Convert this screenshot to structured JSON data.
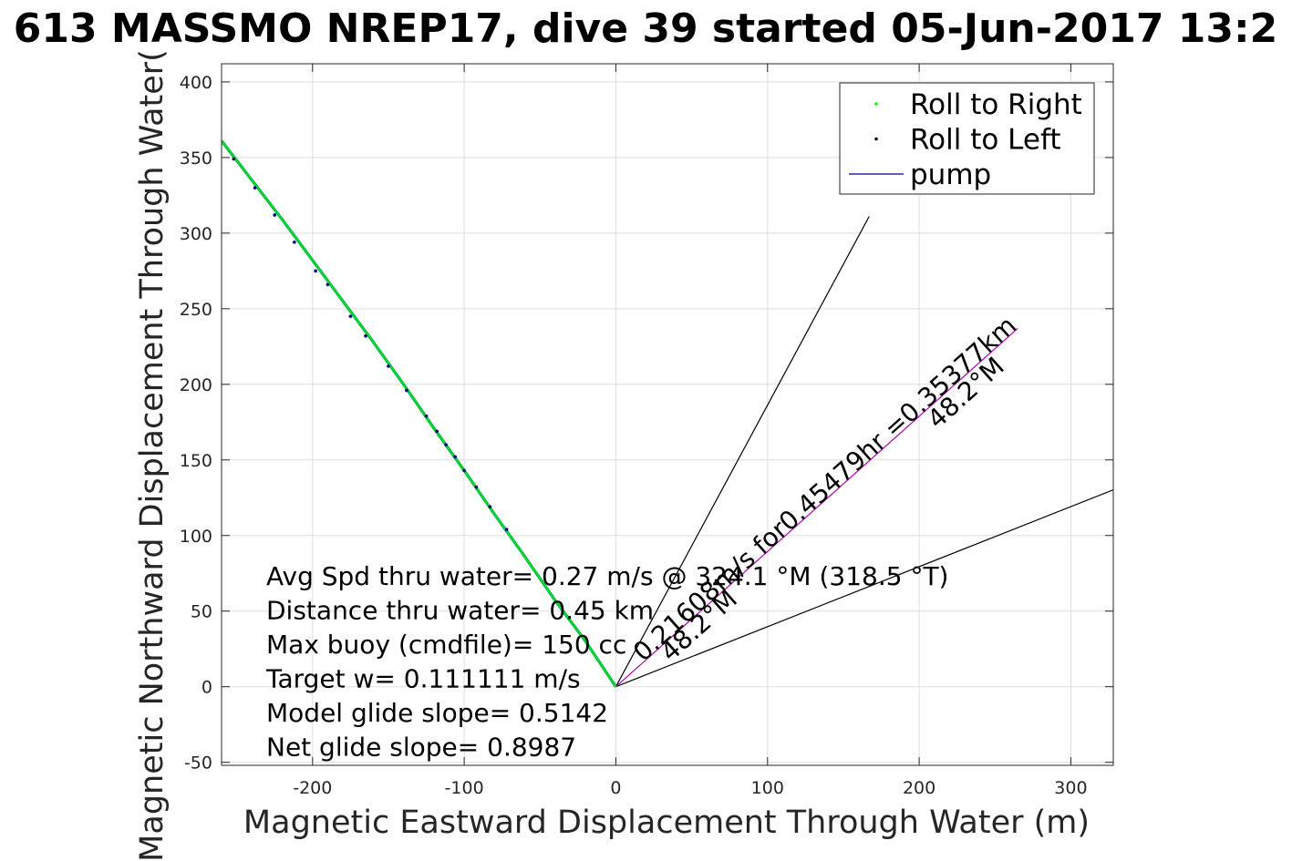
{
  "chart_data": {
    "type": "scatter",
    "title": "613 MASSMO NREP17, dive 39 started 05-Jun-2017 13:2",
    "xlabel": "Magnetic Eastward Displacement Through Water (m)",
    "ylabel": "Magnetic Northward Displacement Through Water(",
    "xlim": [
      -260,
      328
    ],
    "ylim": [
      -52,
      412
    ],
    "xticks": [
      -200,
      -100,
      0,
      100,
      200,
      300
    ],
    "yticks": [
      -50,
      0,
      50,
      100,
      150,
      200,
      250,
      300,
      350,
      400
    ],
    "grid": true,
    "legend": {
      "placement": "top-right",
      "entries": [
        {
          "label": "Roll to Right",
          "color": "#00ff00",
          "marker": "dot"
        },
        {
          "label": "Roll to Left",
          "color": "#000000",
          "marker": "dot"
        },
        {
          "label": "pump",
          "color": "#000080",
          "marker": "line"
        }
      ]
    },
    "track": [
      [
        -260,
        361
      ],
      [
        -240,
        335
      ],
      [
        -220,
        309
      ],
      [
        -200,
        282
      ],
      [
        -180,
        255
      ],
      [
        -160,
        228
      ],
      [
        -140,
        200
      ],
      [
        -120,
        171
      ],
      [
        -100,
        143
      ],
      [
        -80,
        114
      ],
      [
        -60,
        86
      ],
      [
        -40,
        57
      ],
      [
        -20,
        30
      ],
      [
        0,
        0
      ]
    ],
    "left_roll_points": [
      [
        -252,
        349
      ],
      [
        -238,
        330
      ],
      [
        -225,
        312
      ],
      [
        -212,
        294
      ],
      [
        -198,
        275
      ],
      [
        -190,
        266
      ],
      [
        -175,
        245
      ],
      [
        -165,
        232
      ],
      [
        -150,
        212
      ],
      [
        -138,
        196
      ],
      [
        -125,
        179
      ],
      [
        -118,
        169
      ],
      [
        -112,
        160
      ],
      [
        -106,
        152
      ],
      [
        -100,
        143
      ],
      [
        -92,
        132
      ],
      [
        -83,
        119
      ],
      [
        -72,
        104
      ]
    ],
    "glide_lines": [
      {
        "from": [
          0,
          0
        ],
        "to": [
          167,
          311
        ],
        "color": "#000000"
      },
      {
        "from": [
          0,
          0
        ],
        "to": [
          330,
          131
        ],
        "color": "#000000"
      },
      {
        "from": [
          0,
          0
        ],
        "to": [
          265,
          237
        ],
        "color": "#b000b0"
      }
    ],
    "rotated_labels": [
      {
        "text": "0.21608m/s for0.45479hr =0.35377km",
        "x": 18,
        "y": 16,
        "angle": -41.8
      },
      {
        "text": "48.2°M",
        "x": 212,
        "y": 170,
        "angle": -41.8
      },
      {
        "text": "48.2°M",
        "x": 36,
        "y": 16,
        "angle": -41.8
      }
    ],
    "annotations": [
      "Avg Spd thru water=  0.27 m/s @ 324.1 °M (318.5 °T)",
      "Distance thru water=  0.45 km",
      "Max buoy (cmdfile)= 150 cc",
      "Target w= 0.111111 m/s",
      "Model glide slope= 0.5142",
      "Net glide slope= 0.8987"
    ],
    "colors": {
      "track": "#00b050",
      "roll_right": "#00ff00",
      "roll_left": "#000000",
      "pump": "#000080",
      "purple_line": "#b000b0",
      "grid": "#dedede",
      "axes": "#262626"
    }
  }
}
